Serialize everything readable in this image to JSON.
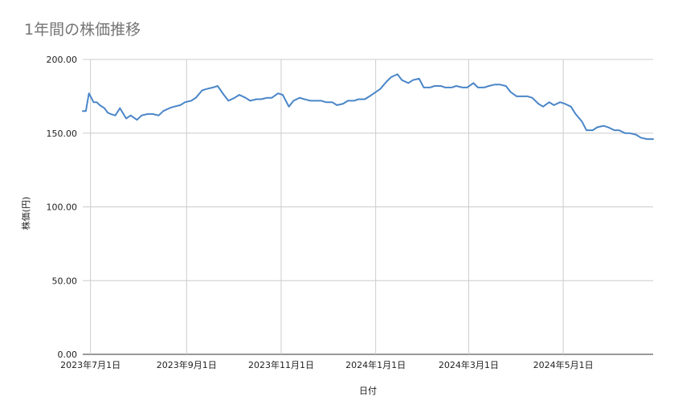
{
  "chart_data": {
    "type": "line",
    "title": "1年間の株価推移",
    "xlabel": "日付",
    "ylabel": "株価(円)",
    "ylim": [
      0,
      200
    ],
    "yticks": [
      0,
      50,
      100,
      150,
      200
    ],
    "ytick_labels": [
      "0.00",
      "50.00",
      "100.00",
      "150.00",
      "200.00"
    ],
    "xlim": [
      "2023-06-26",
      "2024-06-28"
    ],
    "xticks": [
      "2023-07-01",
      "2023-09-01",
      "2023-11-01",
      "2024-01-01",
      "2024-03-01",
      "2024-05-01"
    ],
    "xtick_labels": [
      "2023年7月1日",
      "2023年9月1日",
      "2023年11月1日",
      "2024年1月1日",
      "2024年3月1日",
      "2024年5月1日"
    ],
    "grid": true,
    "line_color": "#4a86c8",
    "series": [
      {
        "x": [
          "2023-06-26",
          "2023-06-28",
          "2023-06-30",
          "2023-07-03",
          "2023-07-05",
          "2023-07-07",
          "2023-07-10",
          "2023-07-12",
          "2023-07-14",
          "2023-07-17",
          "2023-07-20",
          "2023-07-24",
          "2023-07-27",
          "2023-07-31",
          "2023-08-03",
          "2023-08-07",
          "2023-08-10",
          "2023-08-14",
          "2023-08-17",
          "2023-08-21",
          "2023-08-24",
          "2023-08-28",
          "2023-08-31",
          "2023-09-04",
          "2023-09-07",
          "2023-09-11",
          "2023-09-14",
          "2023-09-18",
          "2023-09-21",
          "2023-09-25",
          "2023-09-28",
          "2023-10-02",
          "2023-10-05",
          "2023-10-09",
          "2023-10-12",
          "2023-10-16",
          "2023-10-19",
          "2023-10-23",
          "2023-10-26",
          "2023-10-30",
          "2023-11-02",
          "2023-11-06",
          "2023-11-09",
          "2023-11-13",
          "2023-11-16",
          "2023-11-20",
          "2023-11-23",
          "2023-11-27",
          "2023-11-30",
          "2023-12-04",
          "2023-12-07",
          "2023-12-11",
          "2023-12-14",
          "2023-12-18",
          "2023-12-21",
          "2023-12-25",
          "2023-12-28",
          "2024-01-04",
          "2024-01-08",
          "2024-01-11",
          "2024-01-15",
          "2024-01-18",
          "2024-01-22",
          "2024-01-25",
          "2024-01-29",
          "2024-02-01",
          "2024-02-05",
          "2024-02-08",
          "2024-02-12",
          "2024-02-15",
          "2024-02-19",
          "2024-02-22",
          "2024-02-26",
          "2024-02-29",
          "2024-03-04",
          "2024-03-07",
          "2024-03-11",
          "2024-03-14",
          "2024-03-18",
          "2024-03-21",
          "2024-03-25",
          "2024-03-28",
          "2024-04-01",
          "2024-04-04",
          "2024-04-08",
          "2024-04-11",
          "2024-04-15",
          "2024-04-18",
          "2024-04-22",
          "2024-04-25",
          "2024-04-29",
          "2024-05-02",
          "2024-05-06",
          "2024-05-09",
          "2024-05-13",
          "2024-05-16",
          "2024-05-20",
          "2024-05-23",
          "2024-05-27",
          "2024-05-30",
          "2024-06-03",
          "2024-06-06",
          "2024-06-10",
          "2024-06-13",
          "2024-06-17",
          "2024-06-20",
          "2024-06-24",
          "2024-06-28"
        ],
        "y": [
          165,
          165,
          177,
          171,
          171,
          169,
          167,
          164,
          163,
          162,
          167,
          160,
          162,
          159,
          162,
          163,
          163,
          162,
          165,
          167,
          168,
          169,
          171,
          172,
          174,
          179,
          180,
          181,
          182,
          176,
          172,
          174,
          176,
          174,
          172,
          173,
          173,
          174,
          174,
          177,
          176,
          168,
          172,
          174,
          173,
          172,
          172,
          172,
          171,
          171,
          169,
          170,
          172,
          172,
          173,
          173,
          175,
          180,
          185,
          188,
          190,
          186,
          184,
          186,
          187,
          181,
          181,
          182,
          182,
          181,
          181,
          182,
          181,
          181,
          184,
          181,
          181,
          182,
          183,
          183,
          182,
          178,
          175,
          175,
          175,
          174,
          170,
          168,
          171,
          169,
          171,
          170,
          168,
          163,
          158,
          152,
          152,
          154,
          155,
          154,
          152,
          152,
          150,
          150,
          149,
          147,
          146,
          146
        ]
      }
    ]
  }
}
